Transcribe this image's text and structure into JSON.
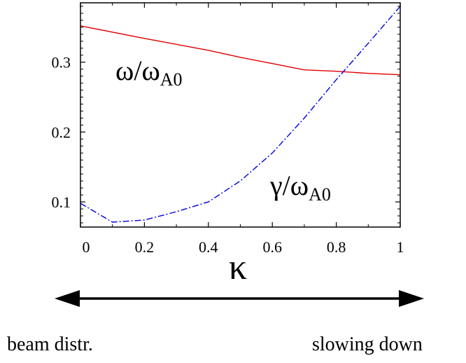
{
  "chart_data": {
    "type": "line",
    "xlabel": "κ",
    "ylabel": "",
    "xlim": [
      0,
      1
    ],
    "ylim": [
      0.064,
      0.385
    ],
    "x_ticks": [
      "0",
      "0.2",
      "0.4",
      "0.6",
      "0.8",
      "1"
    ],
    "y_ticks": [
      "0.1",
      "0.2",
      "0.3"
    ],
    "grid": false,
    "series": [
      {
        "name_main": "ω/ω",
        "name_sub": "A0",
        "color": "#e00000",
        "style": "solid",
        "x": [
          0,
          0.2,
          0.4,
          0.5,
          0.6,
          0.7,
          0.8,
          0.9,
          1.0
        ],
        "y": [
          0.352,
          0.334,
          0.317,
          0.307,
          0.298,
          0.289,
          0.287,
          0.284,
          0.282
        ]
      },
      {
        "name_main": "γ/ω",
        "name_sub": "A0",
        "color": "#0000e0",
        "style": "dashdot",
        "x": [
          0,
          0.1,
          0.2,
          0.3,
          0.4,
          0.5,
          0.6,
          0.7,
          0.8,
          0.9,
          1.0
        ],
        "y": [
          0.098,
          0.071,
          0.074,
          0.086,
          0.1,
          0.13,
          0.17,
          0.22,
          0.275,
          0.327,
          0.38
        ]
      }
    ]
  },
  "arrow_labels": {
    "left": "beam distr.",
    "right": "slowing down"
  }
}
